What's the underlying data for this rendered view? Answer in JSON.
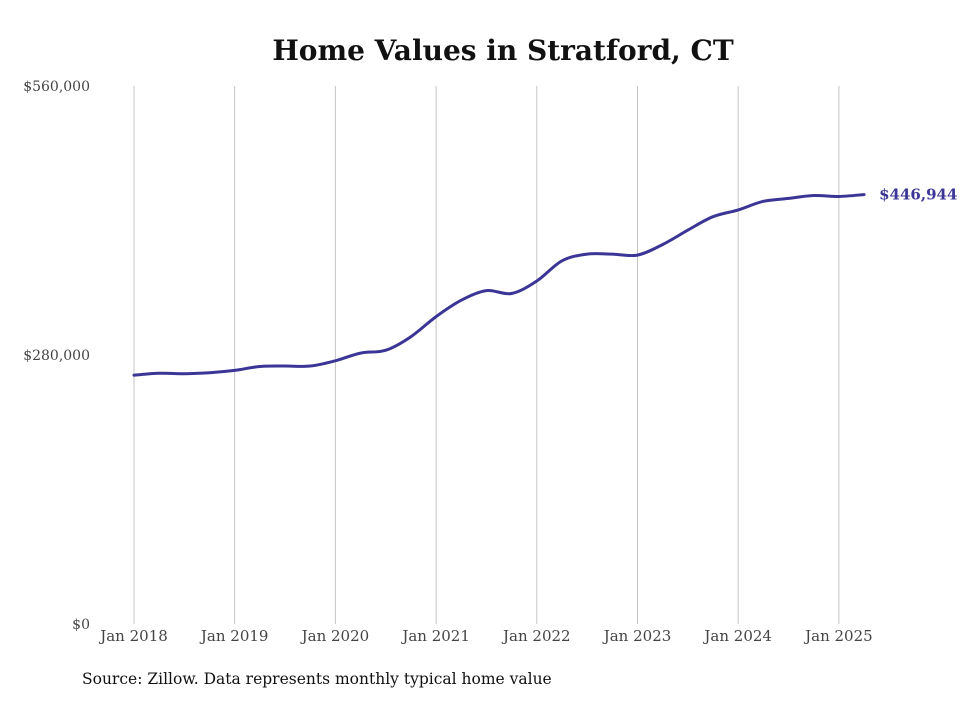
{
  "chart_data": {
    "type": "line",
    "title": "Home Values in Stratford, CT",
    "xlabel": "",
    "ylabel": "",
    "ylim": [
      0,
      560000
    ],
    "y_ticks": [
      {
        "value": 0,
        "label": "$0"
      },
      {
        "value": 280000,
        "label": "$280,000"
      },
      {
        "value": 560000,
        "label": "$560,000"
      }
    ],
    "x_ticks": [
      {
        "value": "2018-01",
        "label": "Jan 2018"
      },
      {
        "value": "2019-01",
        "label": "Jan 2019"
      },
      {
        "value": "2020-01",
        "label": "Jan 2020"
      },
      {
        "value": "2021-01",
        "label": "Jan 2021"
      },
      {
        "value": "2022-01",
        "label": "Jan 2022"
      },
      {
        "value": "2023-01",
        "label": "Jan 2023"
      },
      {
        "value": "2024-01",
        "label": "Jan 2024"
      },
      {
        "value": "2025-01",
        "label": "Jan 2025"
      }
    ],
    "xlim": [
      "2018-01",
      "2025-04"
    ],
    "grid": {
      "vertical": true,
      "horizontal": false
    },
    "legend": "none",
    "end_label": "$446,944",
    "colors": {
      "series": "#3b3596",
      "grid": "#c4c4c4"
    },
    "series": [
      {
        "x": [
          "2018-01",
          "2018-04",
          "2018-07",
          "2018-10",
          "2019-01",
          "2019-04",
          "2019-07",
          "2019-10",
          "2020-01",
          "2020-04",
          "2020-07",
          "2020-10",
          "2021-01",
          "2021-04",
          "2021-07",
          "2021-10",
          "2022-01",
          "2022-04",
          "2022-07",
          "2022-10",
          "2023-01",
          "2023-04",
          "2023-07",
          "2023-10",
          "2024-01",
          "2024-04",
          "2024-07",
          "2024-10",
          "2025-01",
          "2025-04"
        ],
        "values": [
          259000,
          261000,
          260500,
          261500,
          264000,
          268000,
          268500,
          268500,
          274000,
          282000,
          285000,
          299000,
          320000,
          337000,
          347000,
          344000,
          357000,
          378000,
          385000,
          385000,
          384000,
          395000,
          410000,
          424000,
          431000,
          440000,
          443000,
          446000,
          445000,
          446944
        ]
      }
    ]
  },
  "footer": {
    "source": "Source: Zillow. Data represents monthly typical home value"
  }
}
